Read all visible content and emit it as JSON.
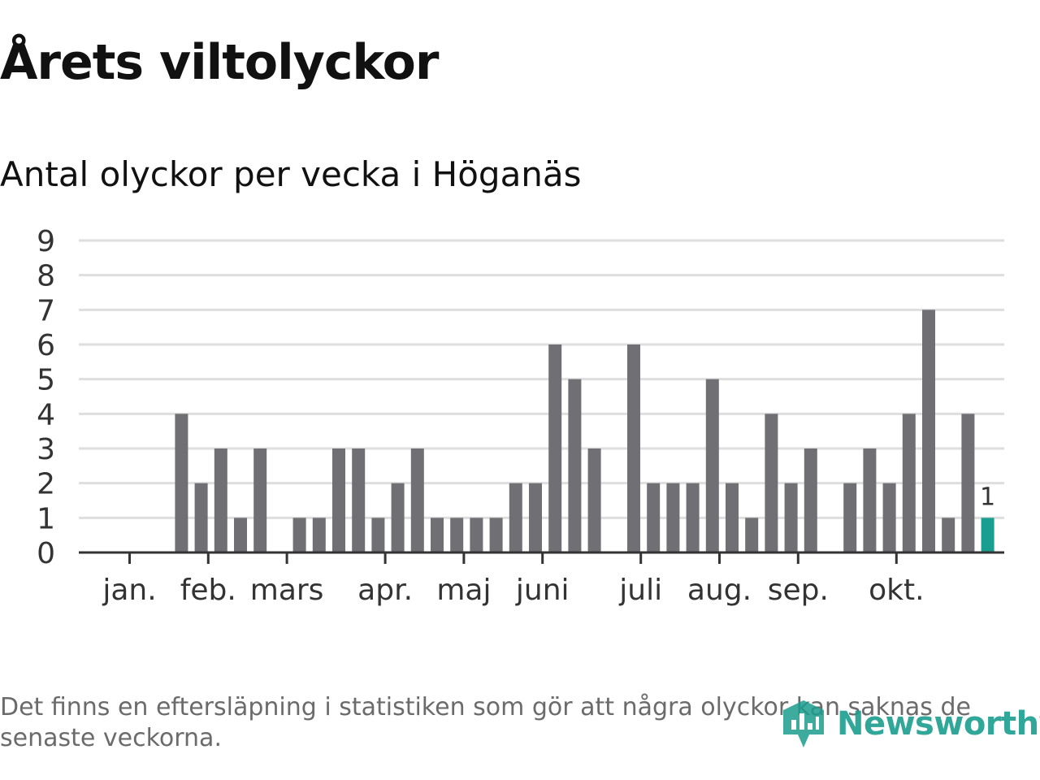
{
  "chart_data": {
    "type": "bar",
    "title": "Årets viltolyckor",
    "subtitle": "Antal olyckor per vecka i Höganäs",
    "xlabel": "",
    "ylabel": "",
    "ylim": [
      0,
      9
    ],
    "yticks": [
      "0",
      "1",
      "2",
      "3",
      "4",
      "5",
      "6",
      "7",
      "8",
      "9"
    ],
    "grid": true,
    "weeks": [
      1,
      2,
      3,
      4,
      5,
      6,
      7,
      8,
      9,
      10,
      11,
      12,
      13,
      14,
      15,
      16,
      17,
      18,
      19,
      20,
      21,
      22,
      23,
      24,
      25,
      26,
      27,
      28,
      29,
      30,
      31,
      32,
      33,
      34,
      35,
      36,
      37,
      38,
      39,
      40,
      41,
      42,
      43,
      44
    ],
    "values": [
      0,
      0,
      4,
      2,
      3,
      1,
      3,
      0,
      1,
      1,
      3,
      3,
      1,
      2,
      3,
      1,
      1,
      1,
      1,
      2,
      2,
      6,
      5,
      3,
      0,
      6,
      2,
      2,
      2,
      5,
      2,
      1,
      4,
      2,
      3,
      0,
      2,
      3,
      2,
      4,
      7,
      1,
      4,
      1
    ],
    "month_labels": [
      "jan.",
      "feb.",
      "mars",
      "apr.",
      "maj",
      "juni",
      "juli",
      "aug.",
      "sep.",
      "okt."
    ],
    "month_tick_weeks": [
      1,
      5,
      9,
      14,
      18,
      22,
      27,
      31,
      35,
      40
    ],
    "highlight_index": 43,
    "highlight_label": "1",
    "bar_color": "#6f6f74",
    "highlight_color": "#1a9e8f",
    "grid_color": "#dedede",
    "axis_color": "#333333"
  },
  "footnote": "Det finns en eftersläpning i statistiken som gör att några olyckor kan saknas de senaste veckorna.",
  "logo": {
    "text": "Newsworthy",
    "icon": "newsworthy-logo-icon",
    "color": "#1b9e8e"
  }
}
